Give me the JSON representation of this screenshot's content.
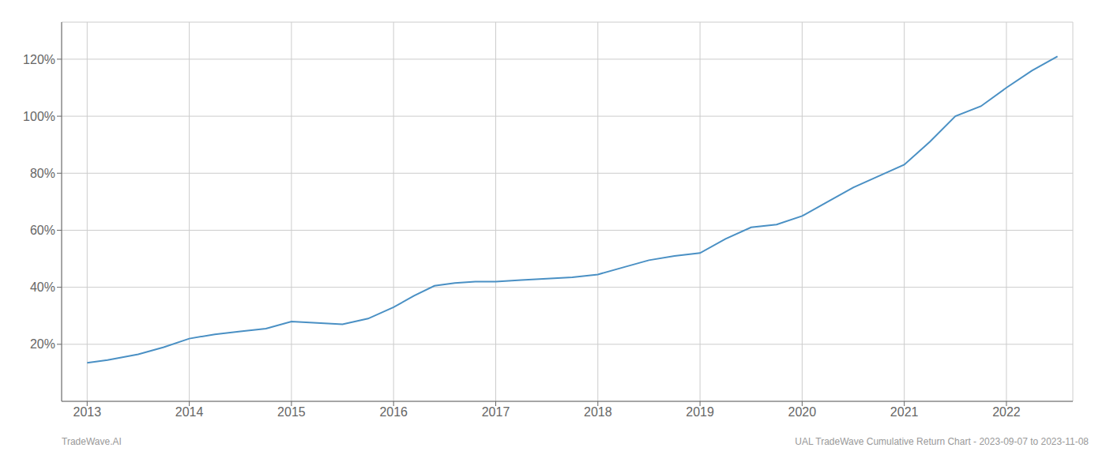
{
  "chart_data": {
    "type": "line",
    "x": [
      2013.0,
      2013.2,
      2013.5,
      2013.75,
      2014.0,
      2014.25,
      2014.5,
      2014.75,
      2015.0,
      2015.25,
      2015.5,
      2015.75,
      2016.0,
      2016.2,
      2016.4,
      2016.6,
      2016.8,
      2017.0,
      2017.25,
      2017.5,
      2017.75,
      2018.0,
      2018.25,
      2018.5,
      2018.75,
      2019.0,
      2019.25,
      2019.5,
      2019.75,
      2020.0,
      2020.25,
      2020.5,
      2020.75,
      2021.0,
      2021.25,
      2021.5,
      2021.75,
      2022.0,
      2022.25,
      2022.5
    ],
    "values": [
      13.5,
      14.5,
      16.5,
      19.0,
      22.0,
      23.5,
      24.5,
      25.5,
      28.0,
      27.5,
      27.0,
      29.0,
      33.0,
      37.0,
      40.5,
      41.5,
      42.0,
      42.0,
      42.5,
      43.0,
      43.5,
      44.5,
      47.0,
      49.5,
      51.0,
      52.0,
      57.0,
      61.0,
      62.0,
      65.0,
      70.0,
      75.0,
      79.0,
      83.0,
      91.0,
      100.0,
      103.5,
      110.0,
      116.0,
      121.0
    ],
    "color": "#4a90c4",
    "xlim": [
      2012.75,
      2022.65
    ],
    "xticks": [
      2013,
      2014,
      2015,
      2016,
      2017,
      2018,
      2019,
      2020,
      2021,
      2022
    ],
    "ylim": [
      0,
      133
    ],
    "yticks": [
      {
        "value": 20,
        "label": "20%"
      },
      {
        "value": 40,
        "label": "40%"
      },
      {
        "value": 60,
        "label": "60%"
      },
      {
        "value": 80,
        "label": "80%"
      },
      {
        "value": 100,
        "label": "100%"
      },
      {
        "value": 120,
        "label": "120%"
      }
    ],
    "grid": true,
    "annotations": [
      "TradeWave.AI",
      "UAL TradeWave Cumulative Return Chart - 2023-09-07 to 2023-11-08"
    ]
  }
}
